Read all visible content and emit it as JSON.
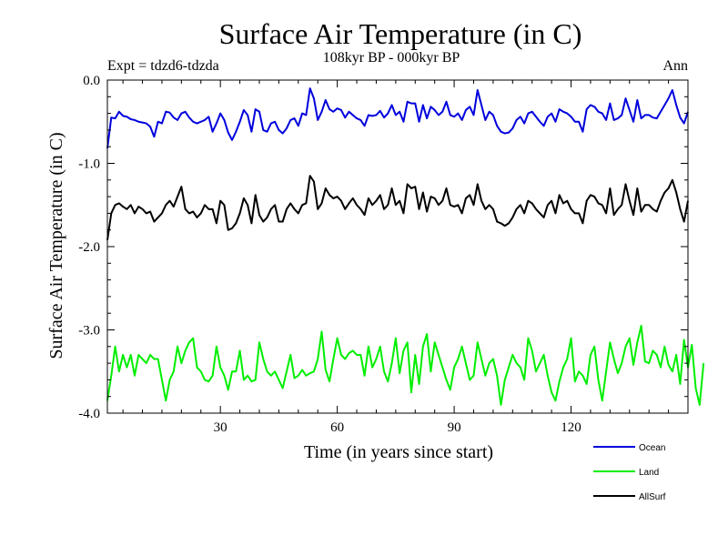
{
  "chart_data": {
    "type": "line",
    "title": "Surface Air Temperature (in C)",
    "subtitle": "108kyr BP - 000kyr BP",
    "experiment_label": "Expt = tdzd6-tdzda",
    "period_label": "Ann",
    "xlabel": "Time (in years since start)",
    "ylabel": "Surface Air Temperature (in C)",
    "xlim": [
      1,
      150
    ],
    "ylim": [
      -4.0,
      0.0
    ],
    "x_ticks": [
      30,
      60,
      90,
      120
    ],
    "y_ticks": [
      0.0,
      -1.0,
      -2.0,
      -3.0,
      -4.0
    ],
    "y_tick_labels": [
      "0.0",
      "-1.0",
      "-2.0",
      "-3.0",
      "-4.0"
    ],
    "grid": false,
    "legend_position": "bottom-right",
    "series": [
      {
        "name": "Ocean",
        "color": "#0000dd",
        "x_start": 1,
        "values": [
          -0.82,
          -0.45,
          -0.46,
          -0.38,
          -0.43,
          -0.44,
          -0.47,
          -0.48,
          -0.5,
          -0.51,
          -0.52,
          -0.56,
          -0.68,
          -0.5,
          -0.52,
          -0.38,
          -0.39,
          -0.45,
          -0.48,
          -0.4,
          -0.38,
          -0.45,
          -0.5,
          -0.52,
          -0.5,
          -0.48,
          -0.44,
          -0.62,
          -0.52,
          -0.4,
          -0.48,
          -0.63,
          -0.72,
          -0.62,
          -0.5,
          -0.36,
          -0.42,
          -0.62,
          -0.35,
          -0.38,
          -0.6,
          -0.62,
          -0.52,
          -0.5,
          -0.6,
          -0.64,
          -0.58,
          -0.48,
          -0.46,
          -0.55,
          -0.4,
          -0.42,
          -0.1,
          -0.22,
          -0.48,
          -0.38,
          -0.24,
          -0.35,
          -0.38,
          -0.34,
          -0.36,
          -0.45,
          -0.38,
          -0.42,
          -0.46,
          -0.48,
          -0.55,
          -0.42,
          -0.43,
          -0.42,
          -0.37,
          -0.45,
          -0.4,
          -0.3,
          -0.42,
          -0.38,
          -0.5,
          -0.26,
          -0.28,
          -0.28,
          -0.5,
          -0.3,
          -0.46,
          -0.32,
          -0.36,
          -0.42,
          -0.38,
          -0.26,
          -0.42,
          -0.44,
          -0.4,
          -0.48,
          -0.36,
          -0.32,
          -0.42,
          -0.12,
          -0.3,
          -0.48,
          -0.38,
          -0.42,
          -0.55,
          -0.62,
          -0.64,
          -0.63,
          -0.58,
          -0.48,
          -0.44,
          -0.52,
          -0.4,
          -0.38,
          -0.44,
          -0.5,
          -0.55,
          -0.44,
          -0.4,
          -0.5,
          -0.35,
          -0.38,
          -0.4,
          -0.44,
          -0.5,
          -0.5,
          -0.62,
          -0.35,
          -0.3,
          -0.32,
          -0.38,
          -0.4,
          -0.48,
          -0.28,
          -0.48,
          -0.46,
          -0.42,
          -0.22,
          -0.36,
          -0.5,
          -0.24,
          -0.46,
          -0.42,
          -0.42,
          -0.45,
          -0.46,
          -0.38,
          -0.3,
          -0.22,
          -0.12,
          -0.3,
          -0.45,
          -0.52,
          -0.38
        ]
      },
      {
        "name": "Land",
        "color": "#00ee00",
        "x_start": 1,
        "values": [
          -3.85,
          -3.55,
          -3.2,
          -3.5,
          -3.3,
          -3.45,
          -3.3,
          -3.55,
          -3.3,
          -3.35,
          -3.4,
          -3.3,
          -3.35,
          -3.35,
          -3.6,
          -3.85,
          -3.6,
          -3.5,
          -3.2,
          -3.4,
          -3.25,
          -3.15,
          -3.1,
          -3.45,
          -3.5,
          -3.6,
          -3.62,
          -3.55,
          -3.2,
          -3.45,
          -3.55,
          -3.72,
          -3.5,
          -3.5,
          -3.25,
          -3.6,
          -3.55,
          -3.62,
          -3.6,
          -3.15,
          -3.35,
          -3.5,
          -3.55,
          -3.5,
          -3.6,
          -3.7,
          -3.5,
          -3.3,
          -3.58,
          -3.55,
          -3.48,
          -3.55,
          -3.52,
          -3.5,
          -3.35,
          -3.02,
          -3.48,
          -3.62,
          -3.35,
          -3.1,
          -3.3,
          -3.35,
          -3.28,
          -3.25,
          -3.3,
          -3.3,
          -3.55,
          -3.2,
          -3.45,
          -3.35,
          -3.2,
          -3.5,
          -3.62,
          -3.4,
          -3.1,
          -3.52,
          -3.25,
          -3.15,
          -3.75,
          -3.3,
          -3.65,
          -3.2,
          -3.05,
          -3.5,
          -3.15,
          -3.3,
          -3.45,
          -3.6,
          -3.72,
          -3.45,
          -3.35,
          -3.2,
          -3.4,
          -3.6,
          -3.55,
          -3.15,
          -3.35,
          -3.55,
          -3.4,
          -3.35,
          -3.55,
          -3.9,
          -3.6,
          -3.45,
          -3.3,
          -3.4,
          -3.45,
          -3.6,
          -3.1,
          -3.25,
          -3.5,
          -3.4,
          -3.3,
          -3.55,
          -3.75,
          -3.85,
          -3.62,
          -3.45,
          -3.35,
          -3.1,
          -3.62,
          -3.5,
          -3.55,
          -3.65,
          -3.3,
          -3.2,
          -3.6,
          -3.85,
          -3.5,
          -3.15,
          -3.35,
          -3.52,
          -3.4,
          -3.2,
          -3.1,
          -3.42,
          -3.15,
          -2.95,
          -3.38,
          -3.4,
          -3.25,
          -3.3,
          -3.45,
          -3.2,
          -3.42,
          -3.5,
          -3.3,
          -3.65,
          -3.12,
          -3.45,
          -3.18,
          -3.7,
          -3.9,
          -3.4
        ]
      },
      {
        "name": "AllSurf",
        "color": "#000000",
        "x_start": 1,
        "values": [
          -1.92,
          -1.6,
          -1.5,
          -1.48,
          -1.52,
          -1.55,
          -1.5,
          -1.6,
          -1.52,
          -1.55,
          -1.6,
          -1.58,
          -1.7,
          -1.65,
          -1.6,
          -1.5,
          -1.45,
          -1.52,
          -1.4,
          -1.28,
          -1.55,
          -1.6,
          -1.58,
          -1.65,
          -1.6,
          -1.5,
          -1.55,
          -1.55,
          -1.72,
          -1.45,
          -1.5,
          -1.8,
          -1.78,
          -1.72,
          -1.6,
          -1.42,
          -1.5,
          -1.72,
          -1.38,
          -1.62,
          -1.7,
          -1.65,
          -1.55,
          -1.5,
          -1.7,
          -1.7,
          -1.55,
          -1.48,
          -1.55,
          -1.6,
          -1.5,
          -1.48,
          -1.15,
          -1.22,
          -1.55,
          -1.48,
          -1.3,
          -1.38,
          -1.42,
          -1.4,
          -1.45,
          -1.55,
          -1.48,
          -1.42,
          -1.5,
          -1.55,
          -1.62,
          -1.42,
          -1.5,
          -1.45,
          -1.38,
          -1.55,
          -1.5,
          -1.3,
          -1.5,
          -1.45,
          -1.6,
          -1.25,
          -1.3,
          -1.28,
          -1.55,
          -1.35,
          -1.58,
          -1.4,
          -1.42,
          -1.5,
          -1.45,
          -1.3,
          -1.5,
          -1.52,
          -1.5,
          -1.6,
          -1.42,
          -1.38,
          -1.5,
          -1.25,
          -1.45,
          -1.55,
          -1.5,
          -1.55,
          -1.7,
          -1.72,
          -1.75,
          -1.72,
          -1.65,
          -1.55,
          -1.5,
          -1.6,
          -1.45,
          -1.48,
          -1.55,
          -1.6,
          -1.65,
          -1.5,
          -1.45,
          -1.6,
          -1.38,
          -1.48,
          -1.45,
          -1.55,
          -1.6,
          -1.6,
          -1.72,
          -1.45,
          -1.38,
          -1.4,
          -1.48,
          -1.5,
          -1.6,
          -1.3,
          -1.62,
          -1.55,
          -1.5,
          -1.25,
          -1.45,
          -1.62,
          -1.3,
          -1.58,
          -1.5,
          -1.5,
          -1.55,
          -1.58,
          -1.45,
          -1.35,
          -1.3,
          -1.2,
          -1.35,
          -1.55,
          -1.7,
          -1.45
        ]
      }
    ]
  }
}
